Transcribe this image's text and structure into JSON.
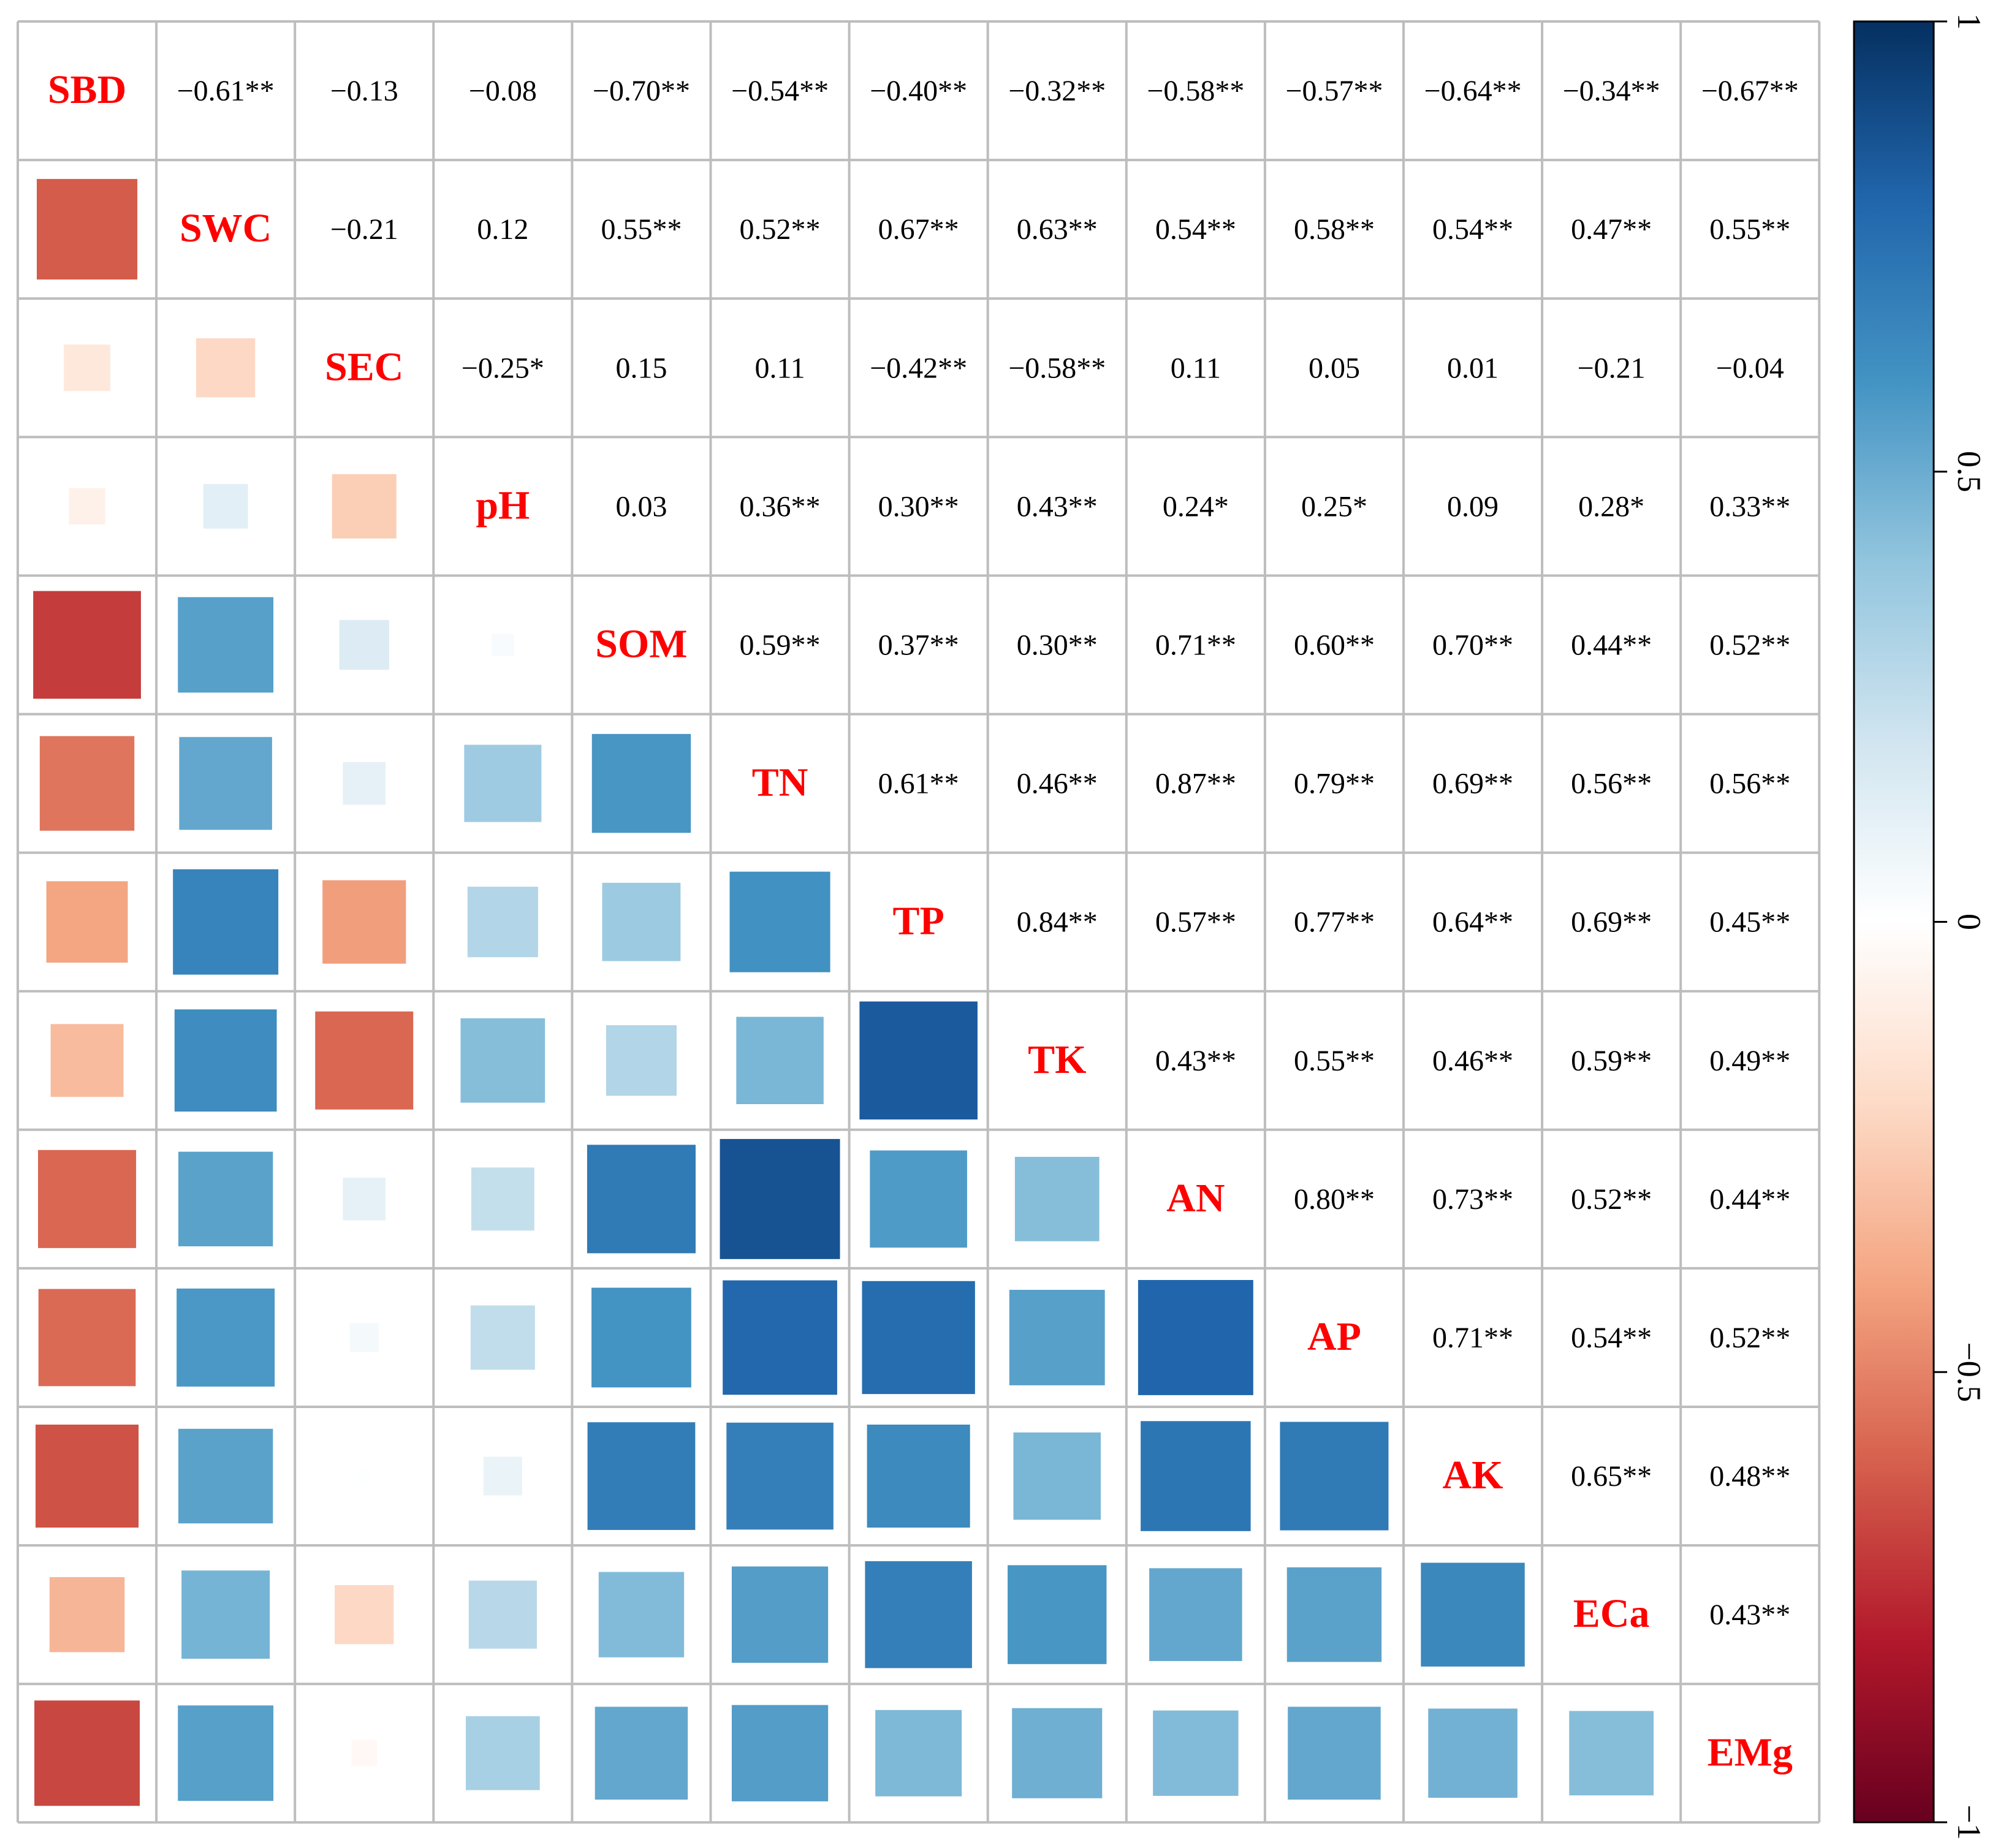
{
  "chart_data": {
    "type": "heatmap",
    "title": "",
    "variables": [
      "SBD",
      "SWC",
      "SEC",
      "pH",
      "SOM",
      "TN",
      "TP",
      "TK",
      "AN",
      "AP",
      "AK",
      "ECa",
      "EMg"
    ],
    "upper_labels": [
      [
        "",
        "−0.61**",
        "−0.13",
        "−0.08",
        "−0.70**",
        "−0.54**",
        "−0.40**",
        "−0.32**",
        "−0.58**",
        "−0.57**",
        "−0.64**",
        "−0.34**",
        "−0.67**"
      ],
      [
        "",
        "",
        "−0.21",
        "0.12",
        "0.55**",
        "0.52**",
        "0.67**",
        "0.63**",
        "0.54**",
        "0.58**",
        "0.54**",
        "0.47**",
        "0.55**"
      ],
      [
        "",
        "",
        "",
        "−0.25*",
        "0.15",
        "0.11",
        "−0.42**",
        "−0.58**",
        "0.11",
        "0.05",
        "0.01",
        "−0.21",
        "−0.04"
      ],
      [
        "",
        "",
        "",
        "",
        "0.03",
        "0.36**",
        "0.30**",
        "0.43**",
        "0.24*",
        "0.25*",
        "0.09",
        "0.28*",
        "0.33**"
      ],
      [
        "",
        "",
        "",
        "",
        "",
        "0.59**",
        "0.37**",
        "0.30**",
        "0.71**",
        "0.60**",
        "0.70**",
        "0.44**",
        "0.52**"
      ],
      [
        "",
        "",
        "",
        "",
        "",
        "",
        "0.61**",
        "0.46**",
        "0.87**",
        "0.79**",
        "0.69**",
        "0.56**",
        "0.56**"
      ],
      [
        "",
        "",
        "",
        "",
        "",
        "",
        "",
        "0.84**",
        "0.57**",
        "0.77**",
        "0.64**",
        "0.69**",
        "0.45**"
      ],
      [
        "",
        "",
        "",
        "",
        "",
        "",
        "",
        "",
        "0.43**",
        "0.55**",
        "0.46**",
        "0.59**",
        "0.49**"
      ],
      [
        "",
        "",
        "",
        "",
        "",
        "",
        "",
        "",
        "",
        "0.80**",
        "0.73**",
        "0.52**",
        "0.44**"
      ],
      [
        "",
        "",
        "",
        "",
        "",
        "",
        "",
        "",
        "",
        "",
        "0.71**",
        "0.54**",
        "0.52**"
      ],
      [
        "",
        "",
        "",
        "",
        "",
        "",
        "",
        "",
        "",
        "",
        "",
        "0.65**",
        "0.48**"
      ],
      [
        "",
        "",
        "",
        "",
        "",
        "",
        "",
        "",
        "",
        "",
        "",
        "",
        "0.43**"
      ],
      [
        "",
        "",
        "",
        "",
        "",
        "",
        "",
        "",
        "",
        "",
        "",
        "",
        ""
      ]
    ],
    "lower_values": [
      [],
      [
        -0.61
      ],
      [
        -0.13,
        -0.21
      ],
      [
        -0.08,
        0.12,
        -0.25
      ],
      [
        -0.7,
        0.55,
        0.15,
        0.03
      ],
      [
        -0.54,
        0.52,
        0.11,
        0.36,
        0.59
      ],
      [
        -0.4,
        0.67,
        -0.42,
        0.3,
        0.37,
        0.61
      ],
      [
        -0.32,
        0.63,
        -0.58,
        0.43,
        0.3,
        0.46,
        0.84
      ],
      [
        -0.58,
        0.54,
        0.11,
        0.24,
        0.71,
        0.87,
        0.57,
        0.43
      ],
      [
        -0.57,
        0.58,
        0.05,
        0.25,
        0.6,
        0.79,
        0.77,
        0.55,
        0.8
      ],
      [
        -0.64,
        0.54,
        0.01,
        0.09,
        0.7,
        0.69,
        0.64,
        0.46,
        0.73,
        0.71
      ],
      [
        -0.34,
        0.47,
        -0.21,
        0.28,
        0.44,
        0.56,
        0.69,
        0.59,
        0.52,
        0.54,
        0.65
      ],
      [
        -0.67,
        0.55,
        -0.04,
        0.33,
        0.52,
        0.56,
        0.45,
        0.49,
        0.44,
        0.52,
        0.48,
        0.43
      ]
    ],
    "colorbar": {
      "range": [
        -1,
        1
      ],
      "ticks": [
        1,
        0.5,
        0,
        -0.5,
        -1
      ],
      "tick_labels": [
        "1",
        "0.5",
        "0",
        "−0.5",
        "−1"
      ],
      "colors": [
        "#67001f",
        "#b2182b",
        "#d6604d",
        "#f4a582",
        "#fddbc7",
        "#ffffff",
        "#d1e5f0",
        "#92c5de",
        "#4393c3",
        "#2166ac",
        "#053061"
      ]
    }
  }
}
